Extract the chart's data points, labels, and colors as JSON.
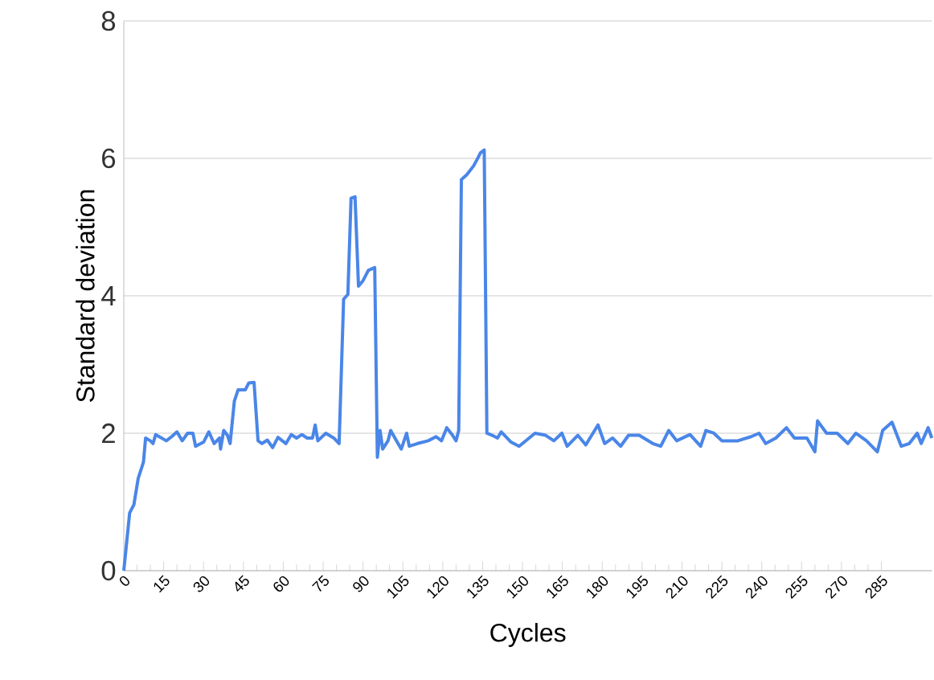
{
  "chart_data": {
    "type": "line",
    "xlabel": "Cycles",
    "ylabel": "Standard deviation",
    "xlim": [
      0,
      304
    ],
    "xticks": [
      0,
      15,
      30,
      45,
      60,
      75,
      90,
      105,
      120,
      135,
      150,
      165,
      180,
      195,
      210,
      225,
      240,
      255,
      270,
      285
    ],
    "ylim": [
      0,
      8
    ],
    "yticks": [
      0,
      2,
      4,
      6,
      8
    ],
    "grid": "y",
    "marker": "none",
    "line_style": "solid",
    "series": [
      {
        "color": "#4a86e8",
        "x": [
          0,
          2.2,
          3.8,
          5.4,
          7.4,
          8.2,
          10,
          11,
          12,
          16,
          18,
          20,
          22,
          24,
          26,
          27,
          30,
          32,
          34,
          36,
          36.4,
          37.6,
          39,
          40,
          41.6,
          43,
          45.7,
          47,
          49,
          50.5,
          52,
          54,
          56,
          58,
          61,
          63,
          65,
          67,
          69,
          71,
          72,
          73,
          76,
          79,
          81,
          82.7,
          84.3,
          85.5,
          87,
          88.3,
          90,
          92,
          94.4,
          95.4,
          96.4,
          97.4,
          99.4,
          100.4,
          102,
          104.4,
          106.4,
          107.4,
          110.5,
          114.5,
          117.5,
          119.5,
          121.5,
          123.5,
          125,
          126,
          127,
          129,
          131.6,
          133,
          134.2,
          135.6,
          136.6,
          138.6,
          140.6,
          142,
          145.7,
          148.7,
          154.7,
          158.7,
          161.8,
          164.8,
          166.8,
          170.8,
          173.8,
          178.4,
          180.9,
          183.9,
          186.9,
          189.9,
          193.9,
          199,
          202,
          205,
          208,
          213,
          217,
          219,
          222,
          225,
          231,
          236,
          239,
          241.5,
          245.3,
          249.3,
          252.3,
          257,
          260,
          261,
          264.4,
          268.4,
          272.4,
          275.4,
          279.4,
          283.5,
          285.5,
          289,
          292.5,
          295.5,
          298.5,
          300,
          302.6,
          304
        ],
        "values": [
          0,
          0.84,
          0.96,
          1.34,
          1.58,
          1.93,
          1.89,
          1.85,
          1.98,
          1.89,
          1.95,
          2.02,
          1.89,
          2.0,
          2.0,
          1.81,
          1.87,
          2.02,
          1.85,
          1.93,
          1.77,
          2.04,
          1.97,
          1.85,
          2.47,
          2.63,
          2.63,
          2.73,
          2.74,
          1.89,
          1.85,
          1.9,
          1.79,
          1.94,
          1.85,
          1.98,
          1.93,
          1.98,
          1.93,
          1.93,
          2.12,
          1.89,
          2.0,
          1.93,
          1.85,
          3.95,
          4.02,
          5.42,
          5.44,
          4.14,
          4.22,
          4.37,
          4.41,
          1.65,
          2.04,
          1.77,
          1.89,
          2.04,
          1.93,
          1.77,
          2.0,
          1.81,
          1.85,
          1.89,
          1.95,
          1.89,
          2.08,
          1.98,
          1.89,
          2.04,
          5.69,
          5.76,
          5.89,
          5.99,
          6.08,
          6.12,
          2.0,
          1.97,
          1.93,
          2.02,
          1.87,
          1.81,
          2.0,
          1.97,
          1.89,
          2.0,
          1.81,
          1.97,
          1.83,
          2.12,
          1.85,
          1.93,
          1.81,
          1.97,
          1.97,
          1.85,
          1.81,
          2.04,
          1.89,
          1.98,
          1.81,
          2.04,
          2.0,
          1.89,
          1.89,
          1.95,
          2.0,
          1.85,
          1.93,
          2.08,
          1.93,
          1.93,
          1.73,
          2.18,
          2.0,
          2.0,
          1.85,
          2.0,
          1.89,
          1.73,
          2.04,
          2.16,
          1.81,
          1.85,
          2.0,
          1.85,
          2.08,
          1.93
        ]
      }
    ]
  }
}
